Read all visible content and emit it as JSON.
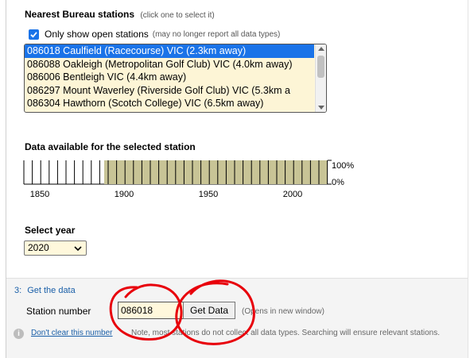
{
  "stations": {
    "title": "Nearest Bureau stations",
    "hint": "(click one to select it)",
    "only_open_label": "Only show open stations",
    "only_open_note": "(may no longer report all data types)",
    "only_open_checked": true,
    "items": [
      {
        "label": "086018 Caulfield (Racecourse) VIC (2.3km away)",
        "selected": true
      },
      {
        "label": "086088 Oakleigh (Metropolitan Golf Club) VIC (4.0km away)",
        "selected": false
      },
      {
        "label": "086006 Bentleigh VIC (4.4km away)",
        "selected": false
      },
      {
        "label": "086297 Mount Waverley (Riverside Golf Club) VIC (5.3km a",
        "selected": false
      },
      {
        "label": "086304 Hawthorn (Scotch College) VIC (6.5km away)",
        "selected": false
      }
    ]
  },
  "availability": {
    "title": "Data available for the selected station",
    "tick_labels": [
      "1850",
      "1900",
      "1950",
      "2000"
    ],
    "label_100": "100%",
    "label_0": "0%",
    "fill_color": "#c8c496"
  },
  "year": {
    "title": "Select year",
    "value": "2020"
  },
  "get_data": {
    "step_number": "3:",
    "step_title": "Get the data",
    "station_label": "Station number",
    "station_value": "086018",
    "button_label": "Get Data",
    "opens_note": "(Opens in new window)",
    "dont_clear_link": "Don't clear this number",
    "note": "Note, most stations do not collect all data types. Searching will ensure relevant stations."
  },
  "colors": {
    "accent": "#1a73e8",
    "link": "#1a5fa8",
    "input_bg": "#fff8dc",
    "annotation": "#e8000b"
  }
}
